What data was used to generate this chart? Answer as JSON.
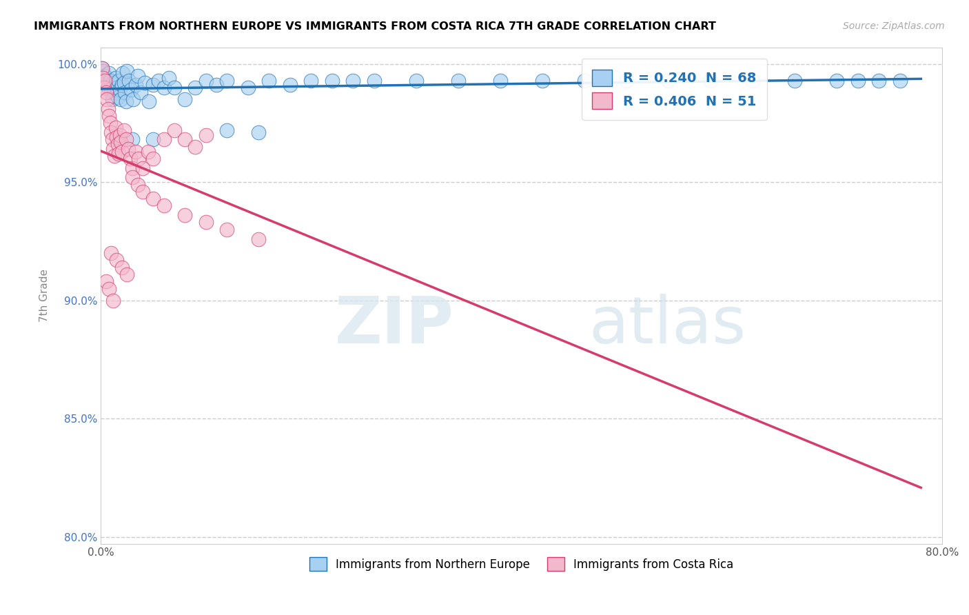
{
  "title": "IMMIGRANTS FROM NORTHERN EUROPE VS IMMIGRANTS FROM COSTA RICA 7TH GRADE CORRELATION CHART",
  "source": "Source: ZipAtlas.com",
  "ylabel": "7th Grade",
  "xlim": [
    0.0,
    0.8
  ],
  "ylim": [
    0.797,
    1.007
  ],
  "xticks": [
    0.0,
    0.2,
    0.4,
    0.6,
    0.8
  ],
  "xtick_labels": [
    "0.0%",
    "",
    "",
    "",
    "80.0%"
  ],
  "yticks": [
    0.8,
    0.85,
    0.9,
    0.95,
    1.0
  ],
  "ytick_labels": [
    "80.0%",
    "85.0%",
    "90.0%",
    "95.0%",
    "100.0%"
  ],
  "legend_blue_label": "Immigrants from Northern Europe",
  "legend_pink_label": "Immigrants from Costa Rica",
  "R_blue": 0.24,
  "N_blue": 68,
  "R_pink": 0.406,
  "N_pink": 51,
  "blue_color": "#a8d0f0",
  "pink_color": "#f4b8cc",
  "trend_blue_color": "#2171b5",
  "trend_pink_color": "#d63b6b",
  "watermark_zip": "ZIP",
  "watermark_atlas": "atlas",
  "blue_scatter_x": [
    0.001,
    0.002,
    0.003,
    0.004,
    0.005,
    0.006,
    0.007,
    0.008,
    0.009,
    0.01,
    0.011,
    0.012,
    0.013,
    0.014,
    0.015,
    0.016,
    0.017,
    0.018,
    0.019,
    0.02,
    0.021,
    0.022,
    0.023,
    0.024,
    0.025,
    0.027,
    0.029,
    0.031,
    0.033,
    0.035,
    0.038,
    0.042,
    0.046,
    0.05,
    0.055,
    0.06,
    0.065,
    0.07,
    0.08,
    0.09,
    0.1,
    0.11,
    0.12,
    0.14,
    0.16,
    0.18,
    0.2,
    0.22,
    0.24,
    0.26,
    0.3,
    0.34,
    0.38,
    0.42,
    0.46,
    0.5,
    0.54,
    0.58,
    0.62,
    0.66,
    0.7,
    0.72,
    0.74,
    0.76,
    0.12,
    0.15,
    0.05,
    0.03
  ],
  "blue_scatter_y": [
    0.998,
    0.997,
    0.993,
    0.995,
    0.991,
    0.994,
    0.99,
    0.996,
    0.993,
    0.988,
    0.985,
    0.992,
    0.988,
    0.994,
    0.99,
    0.986,
    0.993,
    0.989,
    0.985,
    0.991,
    0.996,
    0.992,
    0.988,
    0.984,
    0.997,
    0.993,
    0.989,
    0.985,
    0.991,
    0.995,
    0.988,
    0.992,
    0.984,
    0.991,
    0.993,
    0.99,
    0.994,
    0.99,
    0.985,
    0.99,
    0.993,
    0.991,
    0.993,
    0.99,
    0.993,
    0.991,
    0.993,
    0.993,
    0.993,
    0.993,
    0.993,
    0.993,
    0.993,
    0.993,
    0.993,
    0.993,
    0.993,
    0.993,
    0.993,
    0.993,
    0.993,
    0.993,
    0.993,
    0.993,
    0.972,
    0.971,
    0.968,
    0.968
  ],
  "pink_scatter_x": [
    0.001,
    0.002,
    0.003,
    0.004,
    0.005,
    0.006,
    0.007,
    0.008,
    0.009,
    0.01,
    0.011,
    0.012,
    0.013,
    0.014,
    0.015,
    0.016,
    0.017,
    0.018,
    0.019,
    0.02,
    0.022,
    0.024,
    0.026,
    0.028,
    0.03,
    0.033,
    0.036,
    0.04,
    0.045,
    0.05,
    0.06,
    0.07,
    0.08,
    0.09,
    0.1,
    0.03,
    0.035,
    0.04,
    0.05,
    0.06,
    0.08,
    0.1,
    0.12,
    0.15,
    0.01,
    0.015,
    0.02,
    0.025,
    0.005,
    0.008,
    0.012
  ],
  "pink_scatter_y": [
    0.998,
    0.994,
    0.99,
    0.993,
    0.988,
    0.985,
    0.981,
    0.978,
    0.975,
    0.971,
    0.968,
    0.964,
    0.961,
    0.973,
    0.969,
    0.966,
    0.962,
    0.97,
    0.967,
    0.963,
    0.972,
    0.968,
    0.964,
    0.96,
    0.956,
    0.963,
    0.96,
    0.956,
    0.963,
    0.96,
    0.968,
    0.972,
    0.968,
    0.965,
    0.97,
    0.952,
    0.949,
    0.946,
    0.943,
    0.94,
    0.936,
    0.933,
    0.93,
    0.926,
    0.92,
    0.917,
    0.914,
    0.911,
    0.908,
    0.905,
    0.9
  ]
}
